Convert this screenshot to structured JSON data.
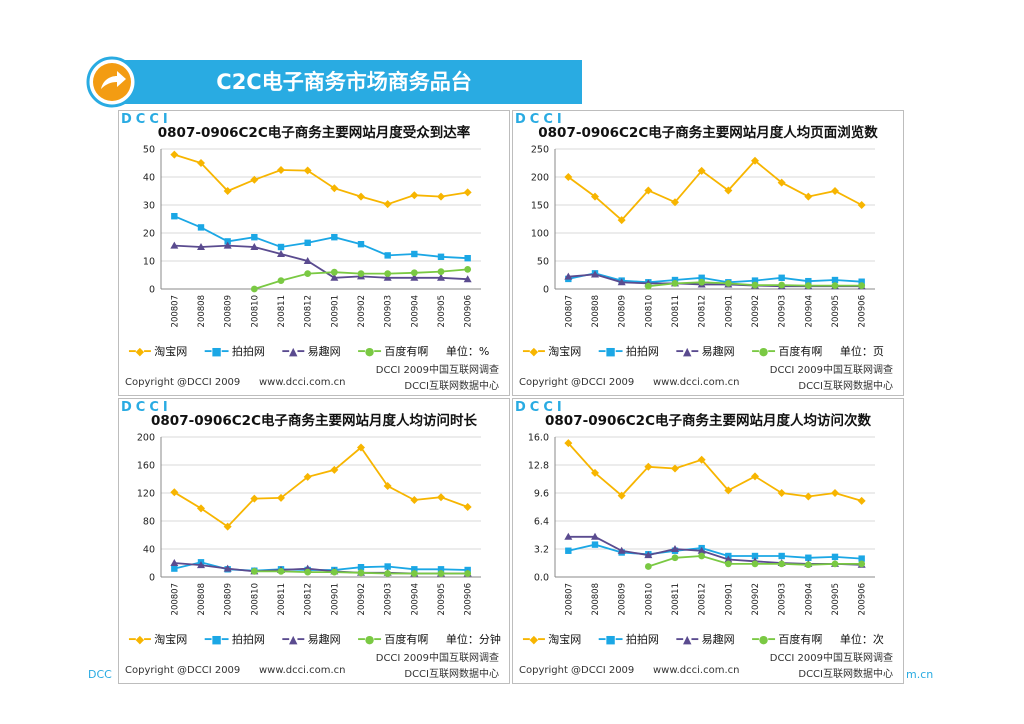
{
  "header": {
    "title": "C2C电子商务市场商务品台"
  },
  "footer": {
    "left_text": "DCC",
    "right_text": "m.cn"
  },
  "colors": {
    "taobao": "#f7b500",
    "paipai": "#1ba7e5",
    "yiqu": "#5a4b8f",
    "baidu": "#7ac943",
    "brand": "#29abe2"
  },
  "chart_data": [
    {
      "type": "line",
      "title": "0807-0906C2C电子商务主要网站月度受众到达率",
      "categories": [
        "200807",
        "200808",
        "200809",
        "200810",
        "200811",
        "200812",
        "200901",
        "200902",
        "200903",
        "200904",
        "200905",
        "200906"
      ],
      "ylim": [
        0,
        50
      ],
      "yticks": [
        "0",
        "10",
        "20",
        "30",
        "40",
        "50"
      ],
      "series": [
        {
          "name": "淘宝网",
          "values": [
            48,
            45,
            35,
            39,
            42.5,
            42.3,
            36,
            33,
            30.3,
            33.5,
            33,
            34.5
          ]
        },
        {
          "name": "拍拍网",
          "values": [
            26,
            22,
            17,
            18.5,
            15,
            16.5,
            18.5,
            16,
            12,
            12.5,
            11.5,
            11
          ]
        },
        {
          "name": "易趣网",
          "values": [
            15.5,
            15,
            15.5,
            15,
            12.5,
            10,
            4,
            4.5,
            4,
            4,
            4,
            3.5
          ]
        },
        {
          "name": "百度有啊",
          "values": [
            null,
            null,
            null,
            0,
            3,
            5.5,
            6,
            5.5,
            5.5,
            5.8,
            6.2,
            7
          ]
        }
      ],
      "legend": [
        "淘宝网",
        "拍拍网",
        "易趣网",
        "百度有啊"
      ],
      "unit": "单位：%",
      "grid": true
    },
    {
      "type": "line",
      "title": "0807-0906C2C电子商务主要网站月度人均页面浏览数",
      "categories": [
        "200807",
        "200808",
        "200809",
        "200810",
        "200811",
        "200812",
        "200901",
        "200902",
        "200903",
        "200904",
        "200905",
        "200906"
      ],
      "ylim": [
        0,
        250
      ],
      "yticks": [
        "0",
        "50",
        "100",
        "150",
        "200",
        "250"
      ],
      "series": [
        {
          "name": "淘宝网",
          "values": [
            200,
            165,
            123,
            176,
            155,
            211,
            176,
            229,
            190,
            165,
            175,
            150
          ]
        },
        {
          "name": "拍拍网",
          "values": [
            18,
            28,
            15,
            12,
            16,
            20,
            12,
            15,
            20,
            14,
            16,
            13
          ]
        },
        {
          "name": "易趣网",
          "values": [
            22,
            26,
            12,
            10,
            10,
            8,
            8,
            6,
            5,
            5,
            5,
            5
          ]
        },
        {
          "name": "百度有啊",
          "values": [
            null,
            null,
            null,
            5,
            10,
            12,
            10,
            7,
            7,
            6,
            6,
            6
          ]
        }
      ],
      "legend": [
        "淘宝网",
        "拍拍网",
        "易趣网",
        "百度有啊"
      ],
      "unit": "单位：页",
      "grid": true
    },
    {
      "type": "line",
      "title": "0807-0906C2C电子商务主要网站月度人均访问时长",
      "categories": [
        "200807",
        "200808",
        "200809",
        "200810",
        "200811",
        "200812",
        "200901",
        "200902",
        "200903",
        "200904",
        "200905",
        "200906"
      ],
      "ylim": [
        0,
        200
      ],
      "yticks": [
        "0",
        "40",
        "80",
        "120",
        "160",
        "200"
      ],
      "series": [
        {
          "name": "淘宝网",
          "values": [
            121,
            98,
            72,
            112,
            113,
            143,
            153,
            185,
            130,
            110,
            114,
            100
          ]
        },
        {
          "name": "拍拍网",
          "values": [
            12,
            21,
            11,
            9,
            11,
            10,
            10,
            14,
            15,
            11,
            11,
            10
          ]
        },
        {
          "name": "易趣网",
          "values": [
            20,
            17,
            12,
            8,
            10,
            12,
            8,
            6,
            6,
            5,
            5,
            5
          ]
        },
        {
          "name": "百度有啊",
          "values": [
            null,
            null,
            null,
            8,
            8,
            7,
            7,
            6,
            5,
            5,
            5,
            5
          ]
        }
      ],
      "legend": [
        "淘宝网",
        "拍拍网",
        "易趣网",
        "百度有啊"
      ],
      "unit": "单位：分钟",
      "grid": true
    },
    {
      "type": "line",
      "title": "0807-0906C2C电子商务主要网站月度人均访问次数",
      "categories": [
        "200807",
        "200808",
        "200809",
        "200810",
        "200811",
        "200812",
        "200901",
        "200902",
        "200903",
        "200904",
        "200905",
        "200906"
      ],
      "ylim": [
        0,
        16
      ],
      "yticks": [
        "0.0",
        "3.2",
        "6.4",
        "9.6",
        "12.8",
        "16.0"
      ],
      "series": [
        {
          "name": "淘宝网",
          "values": [
            15.3,
            11.9,
            9.3,
            12.6,
            12.4,
            13.4,
            9.9,
            11.5,
            9.6,
            9.2,
            9.6,
            8.7
          ]
        },
        {
          "name": "拍拍网",
          "values": [
            3.0,
            3.7,
            2.8,
            2.6,
            3.0,
            3.3,
            2.4,
            2.4,
            2.4,
            2.2,
            2.3,
            2.1
          ]
        },
        {
          "name": "易趣网",
          "values": [
            4.6,
            4.6,
            3.0,
            2.5,
            3.2,
            3.0,
            2.0,
            1.8,
            1.6,
            1.5,
            1.5,
            1.4
          ]
        },
        {
          "name": "百度有啊",
          "values": [
            null,
            null,
            null,
            1.2,
            2.2,
            2.4,
            1.5,
            1.5,
            1.5,
            1.4,
            1.5,
            1.5
          ]
        }
      ],
      "legend": [
        "淘宝网",
        "拍拍网",
        "易趣网",
        "百度有啊"
      ],
      "unit": "单位：次",
      "grid": true
    }
  ],
  "panel_footer": {
    "brand": "DCCI",
    "copyright": "Copyright @DCCI 2009",
    "url": "www.dcci.com.cn",
    "survey": "DCCI 2009中国互联网调查",
    "center": "DCCI互联网数据中心"
  }
}
